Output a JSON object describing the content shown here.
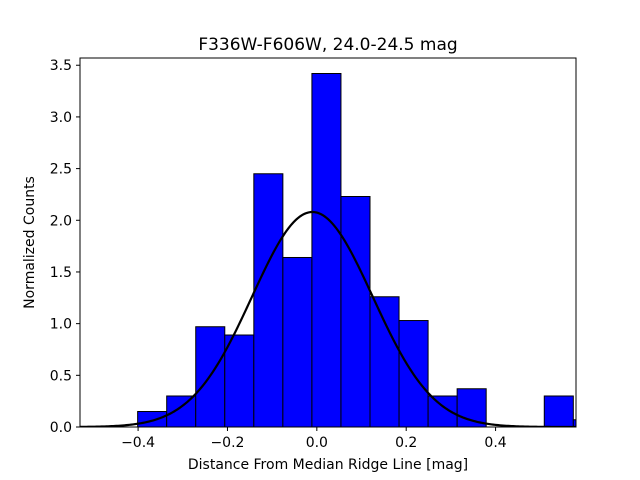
{
  "chart_data": {
    "type": "bar",
    "title": "F336W-F606W, 24.0-24.5 mag",
    "xlabel": "Distance From Median Ridge Line [mag]",
    "ylabel": "Normalized Counts",
    "xlim": [
      -0.53,
      0.58
    ],
    "ylim": [
      0,
      3.57
    ],
    "xticks": [
      -0.4,
      -0.2,
      0.0,
      0.2,
      0.4
    ],
    "xtick_labels": [
      "−0.4",
      "−0.2",
      "0.0",
      "0.2",
      "0.4"
    ],
    "yticks": [
      0.0,
      0.5,
      1.0,
      1.5,
      2.0,
      2.5,
      3.0,
      3.5
    ],
    "ytick_labels": [
      "0.0",
      "0.5",
      "1.0",
      "1.5",
      "2.0",
      "2.5",
      "3.0",
      "3.5"
    ],
    "grid": false,
    "bar_color": "#0000ff",
    "fit_color": "#000000",
    "bins": [
      {
        "x0": -0.401,
        "x1": -0.336,
        "value": 0.15
      },
      {
        "x0": -0.336,
        "x1": -0.271,
        "value": 0.3
      },
      {
        "x0": -0.271,
        "x1": -0.206,
        "value": 0.97
      },
      {
        "x0": -0.206,
        "x1": -0.141,
        "value": 0.89
      },
      {
        "x0": -0.141,
        "x1": -0.076,
        "value": 2.45
      },
      {
        "x0": -0.076,
        "x1": -0.011,
        "value": 1.64
      },
      {
        "x0": -0.011,
        "x1": 0.054,
        "value": 3.42
      },
      {
        "x0": 0.054,
        "x1": 0.119,
        "value": 2.23
      },
      {
        "x0": 0.119,
        "x1": 0.184,
        "value": 1.26
      },
      {
        "x0": 0.184,
        "x1": 0.249,
        "value": 1.03
      },
      {
        "x0": 0.249,
        "x1": 0.314,
        "value": 0.3
      },
      {
        "x0": 0.314,
        "x1": 0.379,
        "value": 0.37
      },
      {
        "x0": 0.379,
        "x1": 0.444,
        "value": 0.0
      },
      {
        "x0": 0.444,
        "x1": 0.509,
        "value": 0.0
      },
      {
        "x0": 0.509,
        "x1": 0.574,
        "value": 0.3
      },
      {
        "x0": 0.574,
        "x1": 0.639,
        "value": 0.07
      }
    ],
    "fit": {
      "type": "gaussian",
      "amplitude": 2.08,
      "mean": -0.01,
      "sigma": 0.135
    }
  }
}
